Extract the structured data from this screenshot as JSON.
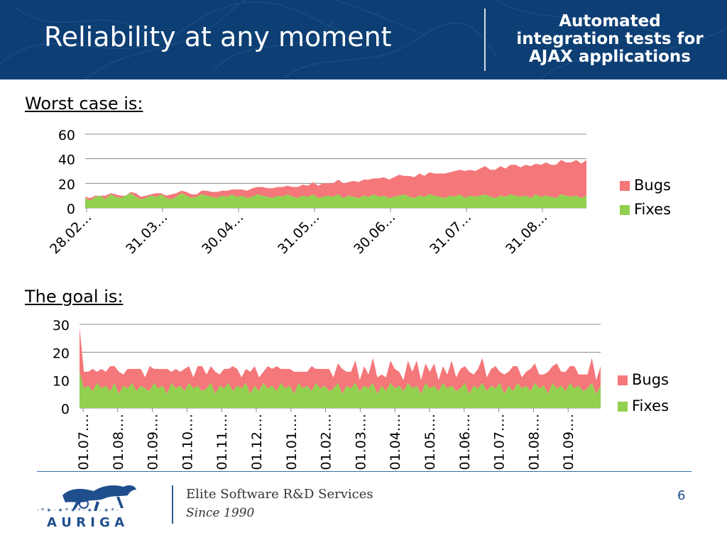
{
  "header": {
    "title": "Reliability at any moment",
    "subtitle_lines": [
      "Automated",
      "integration tests for",
      "AJAX applications"
    ]
  },
  "sections": {
    "worst_case_label": "Worst case is:",
    "goal_label": "The goal is:"
  },
  "colors": {
    "header_bg": "#0d3f74",
    "bugs": "#f4777a",
    "fixes": "#92d050",
    "grid": "#888888",
    "logo_blue": "#1f4e8c"
  },
  "chart_data": [
    {
      "type": "area",
      "stacked": true,
      "title": "",
      "xlabel": "",
      "ylabel": "",
      "ylim": [
        0,
        60
      ],
      "yticks": [
        0,
        20,
        40,
        60
      ],
      "x_tick_labels": [
        "28.02…",
        "31.03…",
        "30.04…",
        "31.05…",
        "30.06…",
        "31.07…",
        "31.08…"
      ],
      "legend": {
        "placement": "right",
        "entries": [
          "Bugs",
          "Fixes"
        ]
      },
      "grid": true,
      "series": [
        {
          "name": "Fixes",
          "values": [
            8,
            6,
            9,
            10,
            7,
            11,
            9,
            8,
            10,
            12,
            9,
            7,
            8,
            10,
            9,
            11,
            8,
            7,
            9,
            12,
            10,
            8,
            9,
            11,
            10,
            9,
            8,
            10,
            9,
            11,
            9,
            10,
            8,
            9,
            11,
            10,
            9,
            8,
            10,
            9,
            11,
            9,
            8,
            10,
            9,
            11,
            8,
            9,
            10,
            9,
            11,
            8,
            10,
            9,
            8,
            10,
            9,
            11,
            9,
            10,
            8,
            9,
            10,
            11,
            9,
            8,
            10,
            9,
            11,
            10,
            9,
            8,
            10,
            9,
            11,
            8,
            10,
            9,
            10,
            11,
            9,
            8,
            10,
            9,
            11,
            10,
            9,
            10,
            8,
            11,
            9,
            10,
            9,
            8,
            11,
            10,
            9,
            10,
            8,
            10
          ]
        },
        {
          "name": "Bugs",
          "values": [
            1,
            2,
            1,
            0,
            3,
            1,
            2,
            2,
            0,
            1,
            3,
            2,
            2,
            1,
            3,
            1,
            2,
            4,
            3,
            2,
            3,
            3,
            2,
            3,
            4,
            4,
            5,
            4,
            5,
            4,
            6,
            5,
            6,
            7,
            6,
            7,
            7,
            8,
            7,
            8,
            7,
            8,
            9,
            9,
            9,
            10,
            10,
            11,
            10,
            11,
            12,
            12,
            11,
            13,
            13,
            13,
            14,
            13,
            15,
            15,
            15,
            16,
            17,
            15,
            17,
            17,
            18,
            17,
            18,
            18,
            19,
            20,
            19,
            21,
            20,
            22,
            21,
            21,
            22,
            23,
            22,
            23,
            24,
            23,
            24,
            25,
            24,
            25,
            26,
            25,
            26,
            27,
            26,
            27,
            28,
            27,
            28,
            29,
            28,
            29
          ]
        }
      ]
    },
    {
      "type": "area",
      "stacked": true,
      "title": "",
      "xlabel": "",
      "ylabel": "",
      "ylim": [
        0,
        30
      ],
      "yticks": [
        0,
        10,
        20,
        30
      ],
      "x_tick_labels": [
        "01.07.…",
        "01.08.…",
        "01.09.…",
        "01.10.…",
        "01.11.…",
        "01.12.…",
        "01.01.…",
        "01.02.…",
        "01.03.…",
        "01.04.…",
        "01.05.…",
        "01.06.…",
        "01.07.…",
        "01.08.…",
        "01.09.…"
      ],
      "legend": {
        "placement": "right",
        "entries": [
          "Bugs",
          "Fixes"
        ]
      },
      "grid": true,
      "series": [
        {
          "name": "Fixes",
          "values": [
            13,
            7,
            8,
            6,
            9,
            7,
            8,
            6,
            9,
            5,
            8,
            7,
            9,
            6,
            8,
            7,
            6,
            9,
            7,
            8,
            5,
            9,
            7,
            8,
            6,
            9,
            7,
            8,
            6,
            7,
            9,
            5,
            8,
            7,
            9,
            6,
            8,
            7,
            9,
            5,
            8,
            6,
            9,
            7,
            8,
            6,
            9,
            7,
            8,
            5,
            9,
            7,
            8,
            6,
            9,
            7,
            8,
            6,
            7,
            9,
            5,
            8,
            7,
            9,
            6,
            8,
            7,
            9,
            5,
            8,
            6,
            9,
            7,
            8,
            6,
            9,
            7,
            8,
            5,
            9,
            7,
            8,
            6,
            9,
            7,
            8,
            6,
            7,
            9,
            5,
            8,
            7,
            9,
            6,
            8,
            7,
            9,
            5,
            8,
            6,
            9,
            7,
            8,
            6,
            9,
            7,
            8,
            5,
            9,
            7,
            8,
            6,
            9,
            7,
            8,
            6,
            7,
            9,
            5,
            8
          ]
        },
        {
          "name": "Bugs",
          "values": [
            16,
            6,
            5,
            8,
            4,
            7,
            5,
            9,
            6,
            8,
            4,
            7,
            5,
            8,
            6,
            4,
            9,
            5,
            7,
            6,
            9,
            4,
            7,
            5,
            8,
            6,
            4,
            7,
            9,
            5,
            6,
            8,
            4,
            7,
            5,
            9,
            6,
            4,
            5,
            8,
            7,
            5,
            4,
            8,
            6,
            9,
            5,
            7,
            6,
            8,
            4,
            6,
            5,
            9,
            5,
            7,
            6,
            8,
            4,
            7,
            9,
            5,
            6,
            8,
            4,
            7,
            5,
            9,
            6,
            4,
            5,
            8,
            7,
            5,
            4,
            8,
            6,
            9,
            5,
            7,
            6,
            8,
            4,
            6,
            5,
            9,
            5,
            7,
            6,
            8,
            4,
            7,
            9,
            5,
            6,
            8,
            4,
            7,
            5,
            9,
            6,
            4,
            5,
            8,
            7,
            5,
            4,
            8,
            6,
            9,
            5,
            7,
            6,
            8,
            4,
            6,
            5,
            9,
            5,
            7
          ]
        }
      ]
    }
  ],
  "footer": {
    "logo_text": "A U R I G A",
    "company": "Elite Software R&D Services",
    "since": "Since 1990",
    "page_number": "6"
  }
}
